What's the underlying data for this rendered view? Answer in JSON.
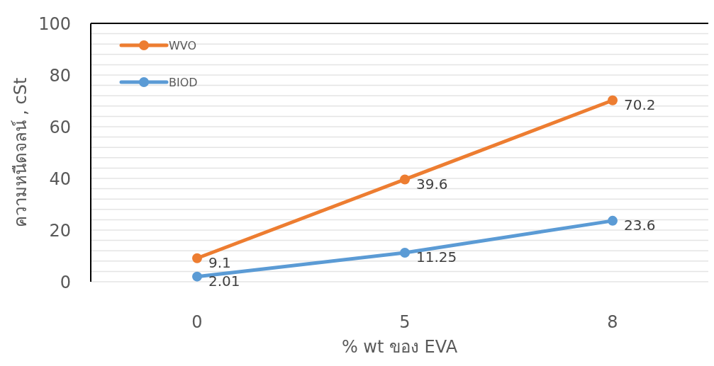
{
  "chart_data": {
    "type": "line",
    "xlabel": "% wt ของ EVA",
    "ylabel": "ความหนืดจลน์ , cSt",
    "categories": [
      "0",
      "5",
      "8"
    ],
    "series": [
      {
        "name": "WVO",
        "color": "#ed7d31",
        "values": [
          9.1,
          39.6,
          70.2
        ]
      },
      {
        "name": "BIOD",
        "color": "#5b9bd5",
        "values": [
          2.01,
          11.25,
          23.6
        ]
      }
    ],
    "ylim": [
      0,
      100
    ],
    "yticks": [
      0,
      {
        "value": 4,
        "label": null
      },
      {
        "value": 8,
        "label": null
      },
      {
        "value": 12,
        "label": null
      },
      {
        "value": 16,
        "label": null
      },
      20,
      {
        "value": 24,
        "label": null
      },
      {
        "value": 28,
        "label": null
      },
      {
        "value": 32,
        "label": null
      },
      {
        "value": 36,
        "label": null
      },
      40,
      {
        "value": 44,
        "label": null
      },
      {
        "value": 48,
        "label": null
      },
      {
        "value": 52,
        "label": null
      },
      {
        "value": 56,
        "label": null
      },
      60,
      {
        "value": 64,
        "label": null
      },
      {
        "value": 68,
        "label": null
      },
      {
        "value": 72,
        "label": null
      },
      {
        "value": 76,
        "label": null
      },
      80,
      {
        "value": 84,
        "label": null
      },
      {
        "value": 88,
        "label": null
      },
      {
        "value": 92,
        "label": null
      },
      {
        "value": 96,
        "label": null
      },
      100
    ],
    "grid": "y",
    "legend": "top left",
    "marker": "circle",
    "line_style": "solid",
    "data_labels": true
  }
}
